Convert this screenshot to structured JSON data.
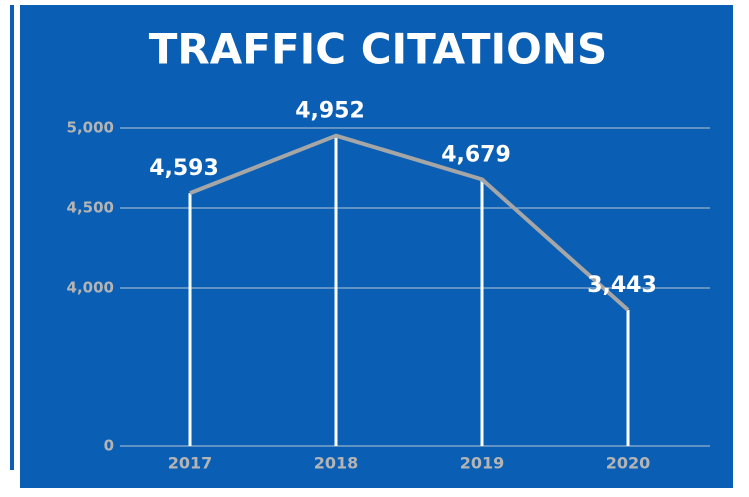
{
  "chart_data": {
    "type": "line",
    "title": "TRAFFIC CITATIONS",
    "categories": [
      "2017",
      "2018",
      "2019",
      "2020"
    ],
    "values": [
      4593,
      4952,
      4679,
      3443
    ],
    "value_labels": [
      "4,593",
      "4,952",
      "4,679",
      "3,443"
    ],
    "color": "#a6a6a6",
    "ylim": [
      0,
      5000
    ],
    "yticks": [
      0,
      {
        "value": 4000,
        "label": "4,000"
      },
      {
        "value": 4500,
        "label": "4,500"
      },
      {
        "value": 5000,
        "label": "5,000"
      }
    ],
    "grid": true
  }
}
